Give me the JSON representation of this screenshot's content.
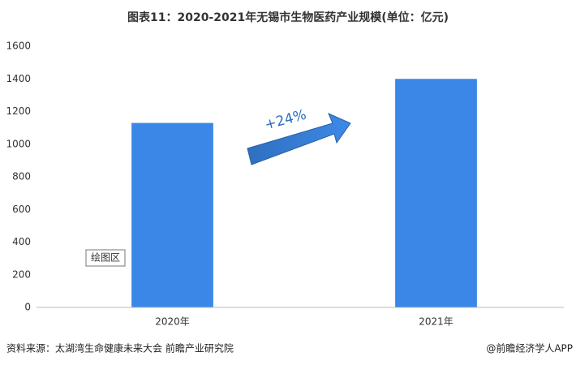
{
  "chart_data": {
    "type": "bar",
    "title": "图表11：2020-2021年无锡市生物医药产业规模(单位：亿元)",
    "categories": [
      "2020年",
      "2021年"
    ],
    "values": [
      1130,
      1400
    ],
    "color": "#3a87e8",
    "ylim": [
      0,
      1600
    ],
    "yticks": [
      0,
      200,
      400,
      600,
      800,
      1000,
      1200,
      1400,
      1600
    ],
    "annotations": [
      "+24%",
      "绘图区"
    ],
    "source": "资料来源：太湖湾生命健康未来大会 前瞻产业研究院",
    "credit": "@前瞻经济学人APP"
  }
}
